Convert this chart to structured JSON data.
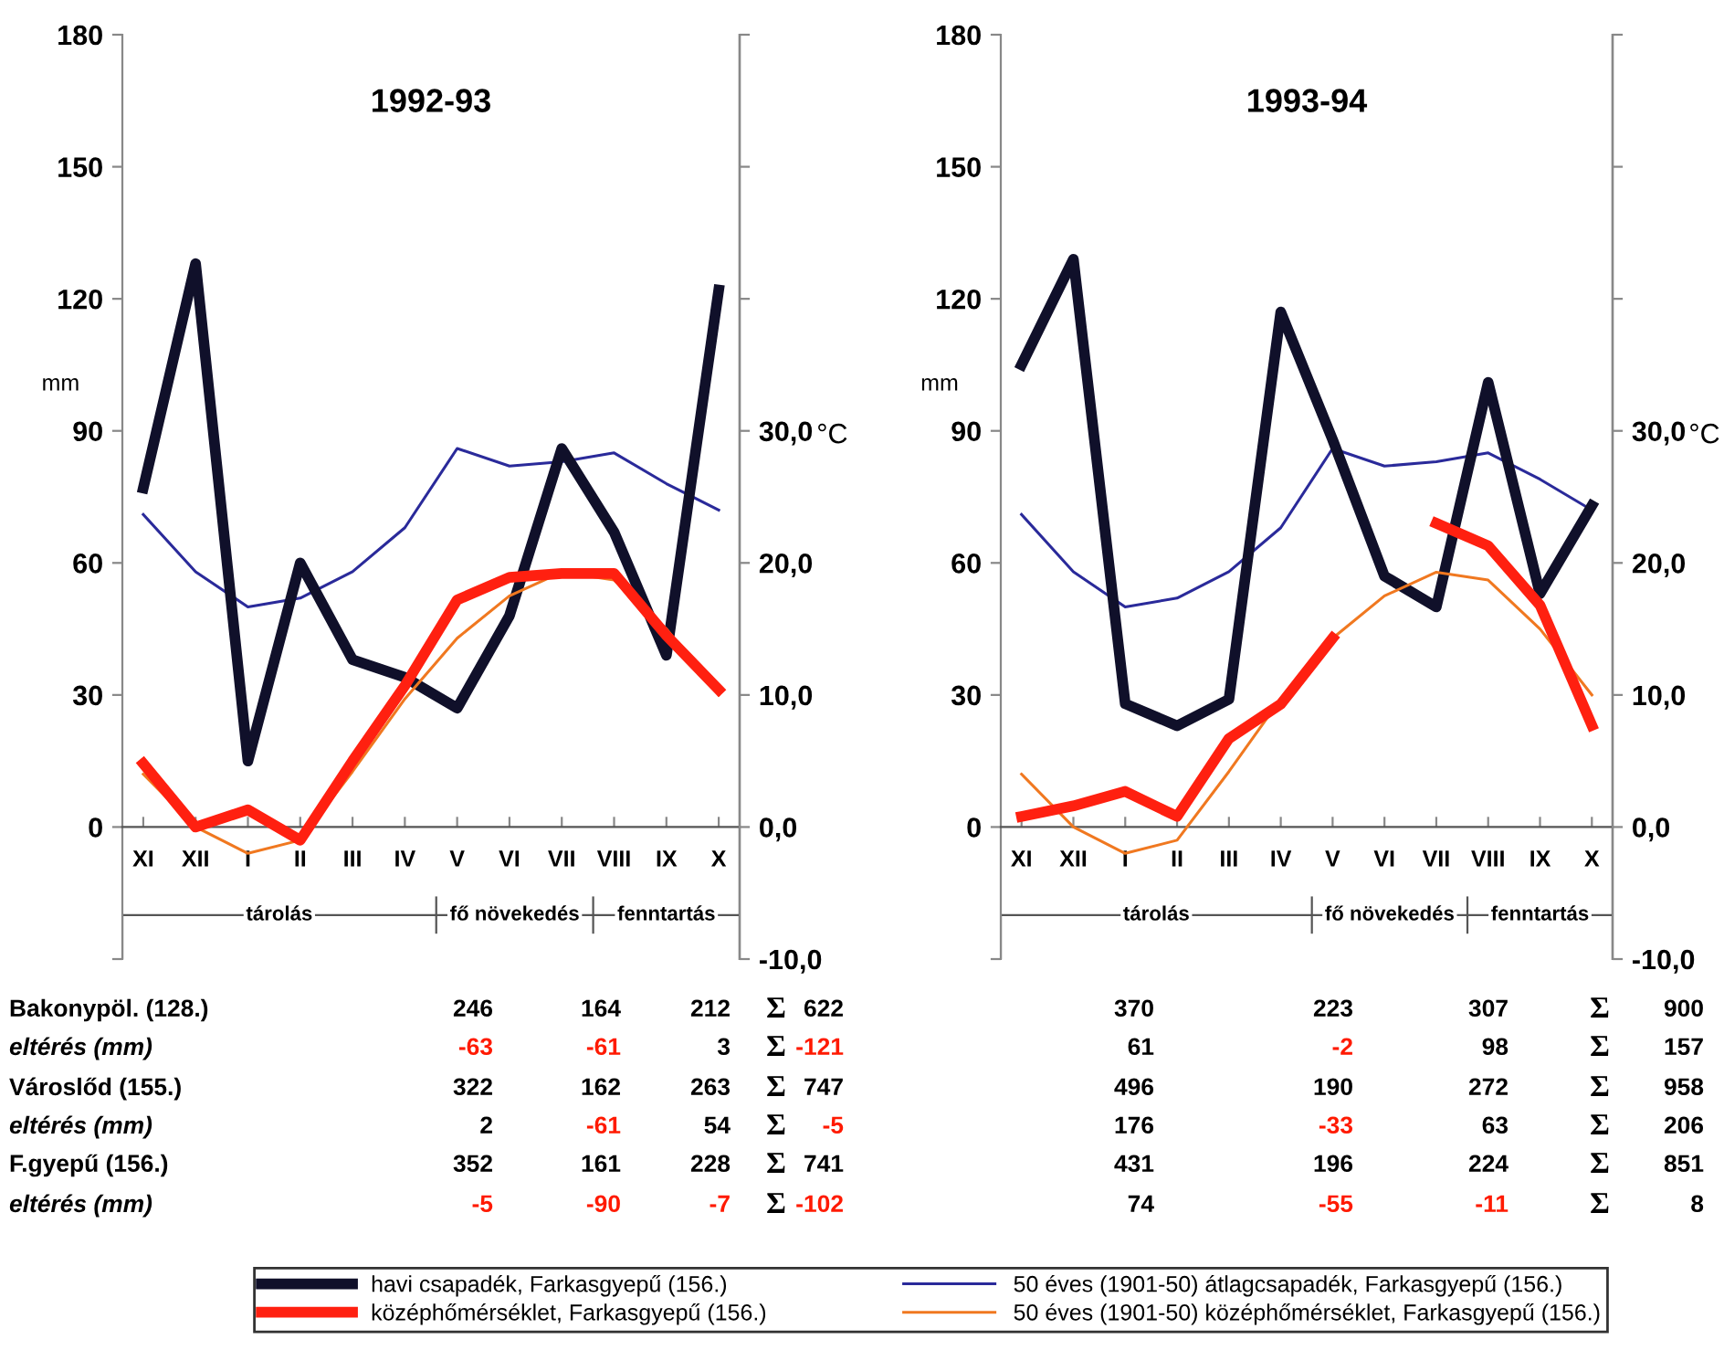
{
  "chart_data": [
    {
      "type": "line",
      "title": "1992-93",
      "ylabel": "mm",
      "y2label": "°C",
      "categories": [
        "XI",
        "XII",
        "I",
        "II",
        "III",
        "IV",
        "V",
        "VI",
        "VII",
        "VIII",
        "IX",
        "X"
      ],
      "ylim": [
        -30,
        180
      ],
      "yticks": [
        {
          "value": -30,
          "label": null
        },
        0,
        30,
        60,
        90,
        120,
        150,
        180
      ],
      "y2lim": [
        -10,
        60
      ],
      "y2ticks": [
        {
          "value": -10,
          "label": "-10,0"
        },
        {
          "value": 0,
          "label": "0,0"
        },
        {
          "value": 10,
          "label": "10,0"
        },
        {
          "value": 20,
          "label": "20,0"
        },
        {
          "value": 30,
          "label": "30,0"
        },
        {
          "value": 40,
          "label": null
        },
        {
          "value": 50,
          "label": null
        },
        {
          "value": 60,
          "label": null
        }
      ],
      "legend": "bottom",
      "marker": "none",
      "series": [
        {
          "name": "havi csapadék, Farkasgyepű (156.)",
          "color": "#10102a",
          "values": [
            77,
            128,
            15,
            60,
            38,
            34,
            27,
            48,
            86,
            67,
            39,
            122
          ]
        },
        {
          "name": "középhőmérséklet, Farkasgyepű (156.)",
          "color": "#ff2010",
          "axis": "y2",
          "values": [
            4.8,
            0.0,
            1.3,
            -1.0,
            5.0,
            10.7,
            17.2,
            18.9,
            19.2,
            19.2,
            14.5,
            10.4
          ]
        },
        {
          "name": "50 éves (1901-50) átlagcsapadék, Farkasgyepű (156.)",
          "color": "#2a2a9a",
          "values": [
            71,
            58,
            50,
            52,
            58,
            68,
            86,
            82,
            83,
            85,
            78,
            72
          ]
        },
        {
          "name": "50 éves (1901-50) középhőmérséklet, Farkasgyepű (156.)",
          "color": "#f07820",
          "axis": "y2",
          "values": [
            4.0,
            0.0,
            -2.0,
            -1.0,
            4.2,
            9.7,
            14.3,
            17.5,
            19.3,
            18.7,
            15.0,
            10.0
          ]
        }
      ],
      "annotations": [
        "tárolás",
        "fő növekedés",
        "fenntartás",
        "Bakonypöl. (128.)",
        "246",
        "164",
        "212",
        "Σ",
        "622",
        "eltérés (mm)",
        "-63",
        "-61",
        "3",
        "Σ",
        "-121",
        "Városlőd (155.)",
        "322",
        "162",
        "263",
        "Σ",
        "747",
        "eltérés (mm)",
        "2",
        "-61",
        "54",
        "Σ",
        "-5",
        "F.gyepű (156.)",
        "352",
        "161",
        "228",
        "Σ",
        "741",
        "eltérés (mm)",
        "-5",
        "-90",
        "-7",
        "Σ",
        "-102"
      ]
    },
    {
      "type": "line",
      "title": "1993-94",
      "ylabel": "mm",
      "y2label": "°C",
      "categories": [
        "XI",
        "XII",
        "I",
        "II",
        "III",
        "IV",
        "V",
        "VI",
        "VII",
        "VIII",
        "IX",
        "X"
      ],
      "ylim": [
        -30,
        180
      ],
      "yticks": [
        {
          "value": -30,
          "label": null
        },
        0,
        30,
        60,
        90,
        120,
        150,
        180
      ],
      "y2lim": [
        -10,
        60
      ],
      "y2ticks": [
        {
          "value": -10,
          "label": "-10,0"
        },
        {
          "value": 0,
          "label": "0,0"
        },
        {
          "value": 10,
          "label": "10,0"
        },
        {
          "value": 20,
          "label": "20,0"
        },
        {
          "value": 30,
          "label": "30,0"
        },
        {
          "value": 40,
          "label": null
        },
        {
          "value": 50,
          "label": null
        },
        {
          "value": 60,
          "label": null
        }
      ],
      "marker": "none",
      "series": [
        {
          "color": "#10102a",
          "values": [
            105,
            129,
            28,
            23,
            29,
            117,
            88,
            57,
            50,
            101,
            53,
            73
          ]
        },
        {
          "color": "#ff2010",
          "axis": "y2",
          "values": [
            0.8,
            1.6,
            2.7,
            0.8,
            6.7,
            9.3,
            14.3,
            null,
            23.0,
            21.3,
            16.8,
            7.7
          ]
        },
        {
          "color": "#2a2a9a",
          "values": [
            71,
            58,
            50,
            52,
            58,
            68,
            86,
            82,
            83,
            85,
            79,
            72
          ]
        },
        {
          "color": "#f07820",
          "axis": "y2",
          "values": [
            4.0,
            0.0,
            -2.0,
            -1.0,
            4.2,
            9.7,
            14.3,
            17.5,
            19.3,
            18.7,
            15.0,
            10.0
          ]
        }
      ],
      "annotations": [
        "tárolás",
        "fő növekedés",
        "fenntartás",
        "370",
        "223",
        "307",
        "Σ",
        "900",
        "61",
        "-2",
        "98",
        "Σ",
        "157",
        "496",
        "190",
        "272",
        "Σ",
        "958",
        "176",
        "-33",
        "63",
        "Σ",
        "206",
        "431",
        "196",
        "224",
        "Σ",
        "851",
        "74",
        "-55",
        "-11",
        "Σ",
        "8"
      ]
    }
  ]
}
